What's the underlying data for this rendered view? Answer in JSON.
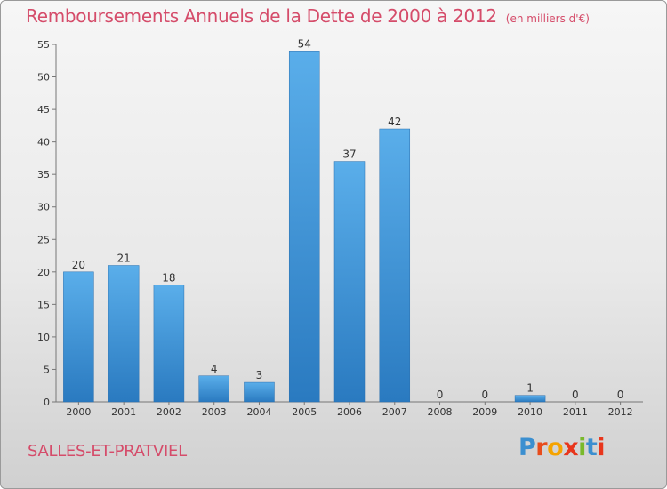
{
  "header": {
    "title": "Remboursements Annuels de la Dette de 2000 à 2012",
    "subtitle": "(en milliers d'€)"
  },
  "footer": {
    "commune": "SALLES-ET-PRATVIEL",
    "logo_text": "Proxiti"
  },
  "colors": {
    "title": "#d54c6a",
    "bar_top": "#5aaeea",
    "bar_bottom": "#2a7ac0",
    "logo_letters": [
      "#3b8fd0",
      "#e84c1c",
      "#f5a300",
      "#e8361c",
      "#79b92b",
      "#3b8fd0",
      "#e8361c"
    ]
  },
  "chart_data": {
    "type": "bar",
    "categories": [
      "2000",
      "2001",
      "2002",
      "2003",
      "2004",
      "2005",
      "2006",
      "2007",
      "2008",
      "2009",
      "2010",
      "2011",
      "2012"
    ],
    "values": [
      20,
      21,
      18,
      4,
      3,
      54,
      37,
      42,
      0,
      0,
      1,
      0,
      0
    ],
    "data_labels": [
      "20",
      "21",
      "18",
      "4",
      "3",
      "54",
      "37",
      "42",
      "0",
      "0",
      "1",
      "0",
      "0"
    ],
    "title": "Remboursements Annuels de la Dette de 2000 à 2012",
    "subtitle": "(en milliers d'€)",
    "xlabel": "",
    "ylabel": "",
    "ylim": [
      0,
      55
    ],
    "yticks": [
      0,
      5,
      10,
      15,
      20,
      25,
      30,
      35,
      40,
      45,
      50,
      55
    ],
    "grid": false,
    "legend": "none"
  }
}
